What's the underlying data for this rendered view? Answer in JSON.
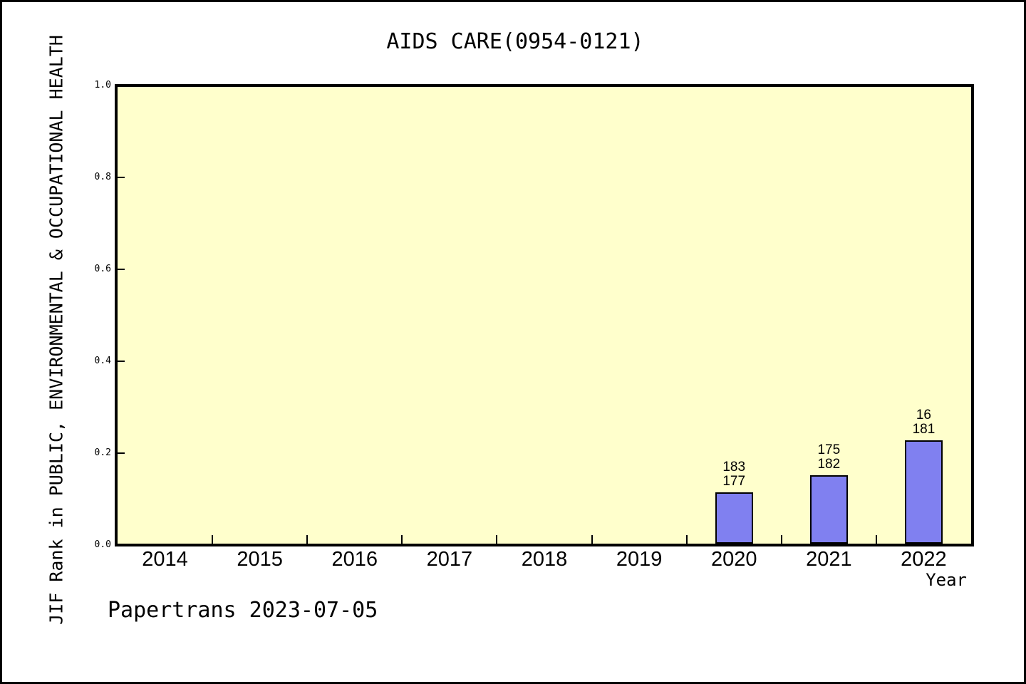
{
  "chart_data": {
    "type": "bar",
    "title": "AIDS CARE(0954-0121)",
    "xlabel": "Year",
    "ylabel": "JIF Rank in PUBLIC, ENVIRONMENTAL & OCCUPATIONAL HEALTH",
    "categories": [
      "2014",
      "2015",
      "2016",
      "2017",
      "2018",
      "2019",
      "2020",
      "2021",
      "2022"
    ],
    "series": [
      {
        "name": "JIF Rank",
        "points": [
          {
            "category": "2020",
            "value": 0.115,
            "annotation": [
              "183",
              "177"
            ]
          },
          {
            "category": "2021",
            "value": 0.152,
            "annotation": [
              "175",
              "182"
            ]
          },
          {
            "category": "2022",
            "value": 0.228,
            "annotation": [
              "16",
              "181"
            ]
          }
        ]
      }
    ],
    "ylim": [
      0,
      1
    ],
    "yticks": [
      "0.0",
      "0.2",
      "0.4",
      "0.6",
      "0.8",
      "1.0"
    ],
    "grid": false,
    "legend": false,
    "plot_bg_color": "#FFFFCC",
    "bar_fill_color": "#8080F0",
    "bar_border_color": "#000000",
    "axis_color": "#000000"
  },
  "footer": {
    "text": "Papertrans 2023-07-05"
  }
}
